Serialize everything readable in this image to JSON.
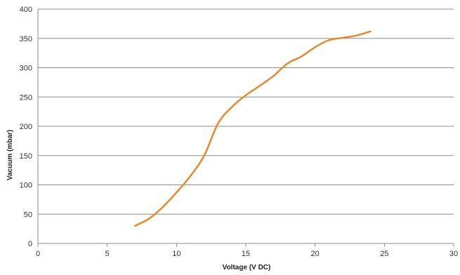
{
  "colors": {
    "series": "#E8892A",
    "gridline": "#8c8c8c",
    "axis": "#8c8c8c"
  },
  "chart_data": {
    "type": "line",
    "title": "",
    "xlabel": "Voltage (V DC)",
    "ylabel": "Vacuum (mbar)",
    "xlim": [
      0,
      30
    ],
    "ylim": [
      0,
      400
    ],
    "xticks": [
      0,
      5,
      10,
      15,
      20,
      25,
      30
    ],
    "yticks": [
      0,
      50,
      100,
      150,
      200,
      250,
      300,
      350,
      400
    ],
    "grid": "horizontal",
    "legend": "none",
    "series": [
      {
        "x": [
          7,
          8,
          9,
          10,
          11,
          12,
          13,
          14,
          15,
          16,
          17,
          18,
          19,
          20,
          21,
          22,
          23,
          24
        ],
        "y": [
          30,
          42,
          62,
          87,
          115,
          150,
          205,
          233,
          253,
          269,
          286,
          307,
          319,
          335,
          347,
          351,
          355,
          362
        ]
      }
    ]
  }
}
